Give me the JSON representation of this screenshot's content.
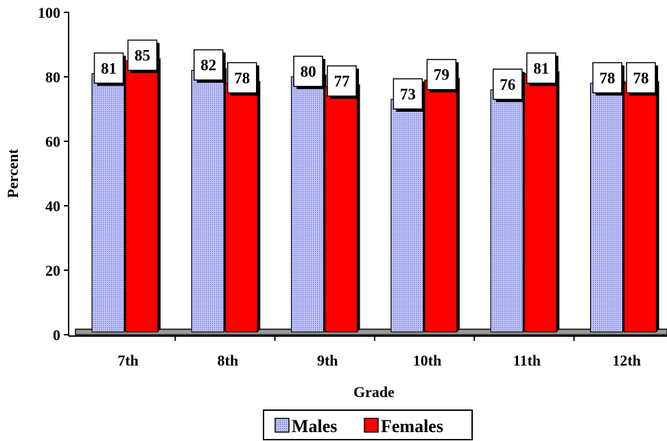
{
  "chart_data": {
    "type": "bar",
    "categories": [
      "7th",
      "8th",
      "9th",
      "10th",
      "11th",
      "12th"
    ],
    "series": [
      {
        "name": "Males",
        "values": [
          81,
          82,
          80,
          73,
          76,
          78
        ],
        "color": "#a9aef0",
        "pattern": "dotted"
      },
      {
        "name": "Females",
        "values": [
          85,
          78,
          77,
          79,
          81,
          78
        ],
        "color": "#ff0000",
        "pattern": "solid"
      }
    ],
    "xlabel": "Grade",
    "ylabel": "Percent",
    "ylim": [
      0,
      100
    ],
    "yticks": [
      0,
      20,
      40,
      60,
      80,
      100
    ],
    "grid": false,
    "legend": "bottom",
    "data_labels": true
  }
}
